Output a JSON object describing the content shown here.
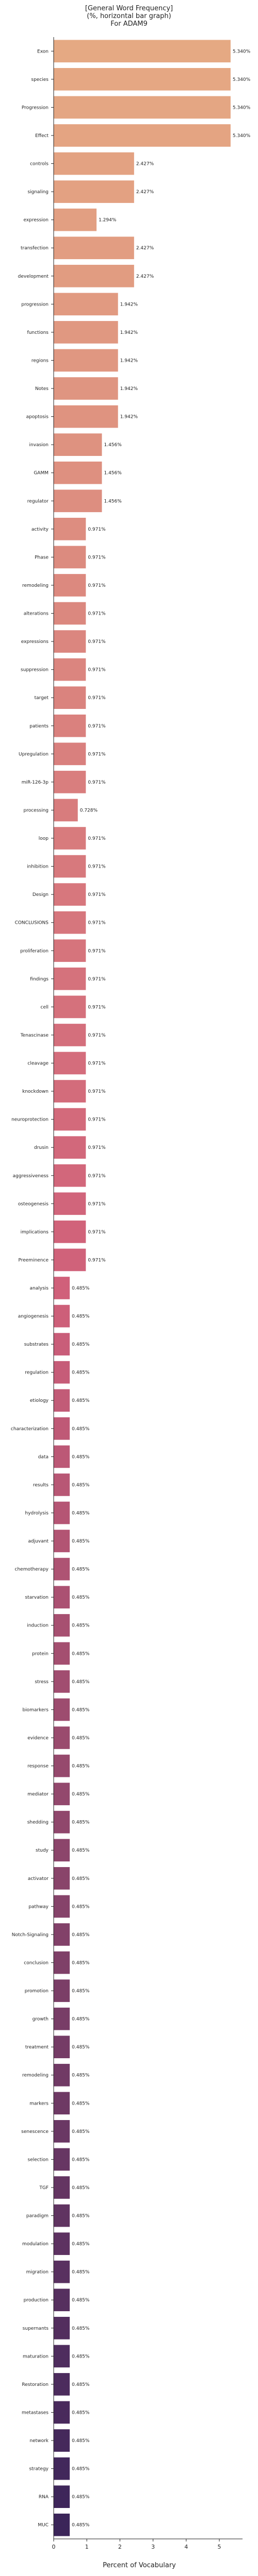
{
  "chart_data": {
    "type": "bar",
    "orientation": "horizontal",
    "title_lines": [
      "[General Word Frequency]",
      "(%, horizontal bar graph)",
      "For ADAM9"
    ],
    "xlabel": "Percent of Vocabulary",
    "ylabel": "",
    "xlim": [
      0,
      5.7
    ],
    "xticks": [
      0,
      1,
      2,
      3,
      4,
      5
    ],
    "grid": false,
    "legend": "none",
    "colormap": "flare",
    "categories": [
      "Exon",
      "species",
      "Progression",
      "Effect",
      "controls",
      "signaling",
      "expression",
      "transfection",
      "development",
      "progression",
      "functions",
      "regions",
      "Notes",
      "apoptosis",
      "invasion",
      "GAMM",
      "regulator",
      "activity",
      "Phase",
      "remodeling",
      "alterations",
      "expressions",
      "suppression",
      "target",
      "patients",
      "Upregulation",
      "miR-126-3p",
      "processing",
      "loop",
      "inhibition",
      "Design",
      "CONCLUSIONS",
      "proliferation",
      "findings",
      "cell",
      "Tenascinase",
      "cleavage",
      "knockdown",
      "neuroprotection",
      "drusin",
      "aggressiveness",
      "osteogenesis",
      "implications",
      "Preeminence",
      "analysis",
      "angiogenesis",
      "substrates",
      "regulation",
      "etiology",
      "characterization",
      "data",
      "results",
      "hydrolysis",
      "adjuvant",
      "chemotherapy",
      "starvation",
      "induction",
      "protein",
      "stress",
      "biomarkers",
      "evidence",
      "response",
      "mediator",
      "shedding",
      "study",
      "activator",
      "pathway",
      "Notch-Signaling",
      "conclusion",
      "promotion",
      "growth",
      "treatment",
      "remodeling",
      "markers",
      "senescence",
      "selection",
      "TGF",
      "paradigm",
      "modulation",
      "migration",
      "production",
      "supernants",
      "maturation",
      "Restoration",
      "metastases",
      "network",
      "strategy",
      "RNA",
      "MUC"
    ],
    "values": [
      5.34,
      5.34,
      5.34,
      5.34,
      2.427,
      2.427,
      1.294,
      2.427,
      2.427,
      1.942,
      1.942,
      1.942,
      1.942,
      1.942,
      1.456,
      1.456,
      1.456,
      0.971,
      0.971,
      0.971,
      0.971,
      0.971,
      0.971,
      0.971,
      0.971,
      0.971,
      0.971,
      0.728,
      0.971,
      0.971,
      0.971,
      0.971,
      0.971,
      0.971,
      0.971,
      0.971,
      0.971,
      0.971,
      0.971,
      0.971,
      0.971,
      0.971,
      0.971,
      0.971,
      0.485,
      0.485,
      0.485,
      0.485,
      0.485,
      0.485,
      0.485,
      0.485,
      0.485,
      0.485,
      0.485,
      0.485,
      0.485,
      0.485,
      0.485,
      0.485,
      0.485,
      0.485,
      0.485,
      0.485,
      0.485,
      0.485,
      0.485,
      0.485,
      0.485,
      0.485,
      0.485,
      0.485,
      0.485,
      0.485,
      0.485,
      0.485,
      0.485,
      0.485,
      0.485,
      0.485,
      0.485,
      0.485,
      0.485,
      0.485,
      0.485,
      0.485,
      0.485,
      0.485,
      0.485
    ],
    "value_labels": [
      "5.340%",
      "5.340%",
      "5.340%",
      "5.340%",
      "2.427%",
      "2.427%",
      "1.294%",
      "2.427%",
      "2.427%",
      "1.942%",
      "1.942%",
      "1.942%",
      "1.942%",
      "1.942%",
      "1.456%",
      "1.456%",
      "1.456%",
      "0.971%",
      "0.971%",
      "0.971%",
      "0.971%",
      "0.971%",
      "0.971%",
      "0.971%",
      "0.971%",
      "0.971%",
      "0.971%",
      "0.728%",
      "0.971%",
      "0.971%",
      "0.971%",
      "0.971%",
      "0.971%",
      "0.971%",
      "0.971%",
      "0.971%",
      "0.971%",
      "0.971%",
      "0.971%",
      "0.971%",
      "0.971%",
      "0.971%",
      "0.971%",
      "0.971%",
      "0.485%",
      "0.485%",
      "0.485%",
      "0.485%",
      "0.485%",
      "0.485%",
      "0.485%",
      "0.485%",
      "0.485%",
      "0.485%",
      "0.485%",
      "0.485%",
      "0.485%",
      "0.485%",
      "0.485%",
      "0.485%",
      "0.485%",
      "0.485%",
      "0.485%",
      "0.485%",
      "0.485%",
      "0.485%",
      "0.485%",
      "0.485%",
      "0.485%",
      "0.485%",
      "0.485%",
      "0.485%",
      "0.485%",
      "0.485%",
      "0.485%",
      "0.485%",
      "0.485%",
      "0.485%",
      "0.485%",
      "0.485%",
      "0.485%",
      "0.485%",
      "0.485%",
      "0.485%",
      "0.485%",
      "0.485%",
      "0.485%",
      "0.485%",
      "0.485%"
    ],
    "palette_start": "#E5A983",
    "palette_mid": "#D0607A",
    "palette_end": "#3B2559"
  }
}
